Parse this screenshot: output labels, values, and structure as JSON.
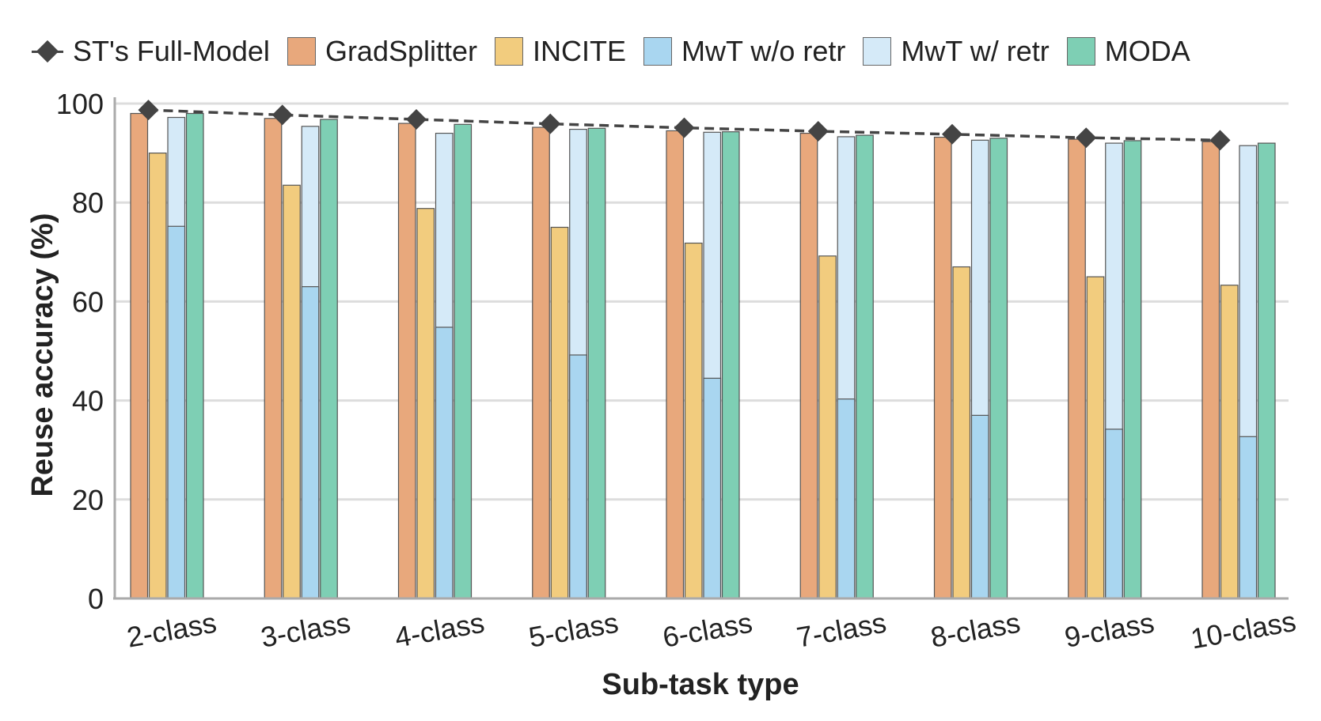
{
  "chart_data": {
    "type": "bar",
    "xlabel": "Sub-task type",
    "ylabel": "Reuse accuracy (%)",
    "ylim": [
      0,
      100
    ],
    "yticks": [
      0,
      20,
      40,
      60,
      80,
      100
    ],
    "grid": "horizontal",
    "legend_position": "top",
    "categories": [
      "2-class",
      "3-class",
      "4-class",
      "5-class",
      "6-class",
      "7-class",
      "8-class",
      "9-class",
      "10-class"
    ],
    "series": [
      {
        "name": "GradSplitter",
        "kind": "bar",
        "color": "#E8A87C",
        "values": [
          98.0,
          97.0,
          96.0,
          95.2,
          94.5,
          94.0,
          93.2,
          92.8,
          92.3
        ]
      },
      {
        "name": "INCITE",
        "kind": "bar",
        "color": "#F2CC7E",
        "values": [
          90.0,
          83.5,
          78.8,
          75.0,
          71.8,
          69.2,
          67.0,
          65.0,
          63.3
        ]
      },
      {
        "name": "MwT w/o retr",
        "kind": "bar",
        "color": "#A9D6F0",
        "values": [
          75.2,
          63.0,
          54.8,
          49.2,
          44.5,
          40.3,
          37.0,
          34.2,
          32.7
        ]
      },
      {
        "name": "MwT w/ retr",
        "kind": "bar",
        "color": "#D5EAF8",
        "values": [
          97.2,
          95.4,
          94.0,
          94.8,
          94.2,
          93.3,
          92.6,
          92.0,
          91.5
        ]
      },
      {
        "name": "MODA",
        "kind": "bar",
        "color": "#7ECFB4",
        "values": [
          98.0,
          96.8,
          95.8,
          95.0,
          94.3,
          93.6,
          93.0,
          92.5,
          92.0
        ]
      },
      {
        "name": "ST's Full-Model",
        "kind": "line",
        "color": "#444444",
        "values": [
          98.7,
          97.7,
          96.8,
          95.9,
          95.1,
          94.4,
          93.8,
          93.1,
          92.6
        ]
      }
    ]
  }
}
